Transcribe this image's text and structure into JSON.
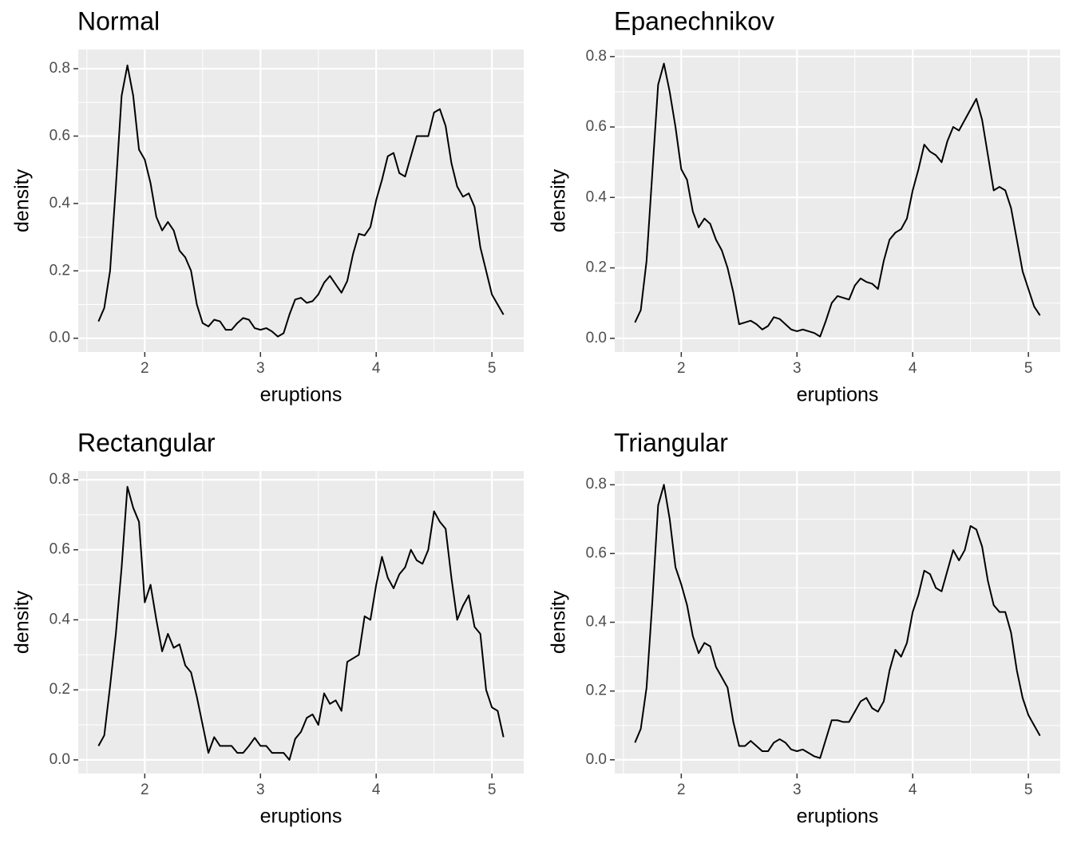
{
  "chart_data": [
    {
      "type": "line",
      "title": "Normal",
      "x_label": "eruptions",
      "y_label": "density",
      "color": "#000000",
      "grid": true,
      "xlim": [
        1.425,
        5.275
      ],
      "ylim": [
        -0.041,
        0.857
      ],
      "xticks": [
        2,
        3,
        4,
        5
      ],
      "yticks": [
        {
          "value": 0,
          "label": "0.0"
        },
        0.2,
        0.4,
        0.6,
        0.8
      ],
      "xminor": [
        1.5,
        2.5,
        3.5,
        4.5
      ],
      "yminor": [
        0.1,
        0.3,
        0.5,
        0.7
      ],
      "x": [
        1.6,
        1.65,
        1.7,
        1.75,
        1.8,
        1.85,
        1.9,
        1.95,
        2.0,
        2.05,
        2.1,
        2.15,
        2.2,
        2.25,
        2.3,
        2.35,
        2.4,
        2.45,
        2.5,
        2.55,
        2.6,
        2.65,
        2.7,
        2.75,
        2.8,
        2.85,
        2.9,
        2.95,
        3.0,
        3.05,
        3.1,
        3.15,
        3.2,
        3.25,
        3.3,
        3.35,
        3.4,
        3.45,
        3.5,
        3.55,
        3.6,
        3.65,
        3.7,
        3.75,
        3.8,
        3.85,
        3.9,
        3.95,
        4.0,
        4.05,
        4.1,
        4.15,
        4.2,
        4.25,
        4.3,
        4.35,
        4.4,
        4.45,
        4.5,
        4.55,
        4.6,
        4.65,
        4.7,
        4.75,
        4.8,
        4.85,
        4.9,
        4.95,
        5.0,
        5.05,
        5.1
      ],
      "values": [
        0.05,
        0.09,
        0.2,
        0.45,
        0.72,
        0.81,
        0.72,
        0.56,
        0.53,
        0.46,
        0.36,
        0.32,
        0.345,
        0.32,
        0.26,
        0.24,
        0.2,
        0.1,
        0.045,
        0.035,
        0.055,
        0.05,
        0.025,
        0.025,
        0.045,
        0.06,
        0.055,
        0.03,
        0.025,
        0.03,
        0.02,
        0.005,
        0.015,
        0.07,
        0.115,
        0.12,
        0.105,
        0.11,
        0.13,
        0.165,
        0.185,
        0.16,
        0.135,
        0.17,
        0.25,
        0.31,
        0.305,
        0.33,
        0.41,
        0.47,
        0.54,
        0.55,
        0.49,
        0.48,
        0.54,
        0.6,
        0.6,
        0.6,
        0.67,
        0.68,
        0.63,
        0.52,
        0.45,
        0.42,
        0.43,
        0.39,
        0.27,
        0.2,
        0.13,
        0.1,
        0.07
      ]
    },
    {
      "type": "line",
      "title": "Epanechnikov",
      "x_label": "eruptions",
      "y_label": "density",
      "color": "#000000",
      "grid": true,
      "xlim": [
        1.425,
        5.275
      ],
      "ylim": [
        -0.039,
        0.82
      ],
      "xticks": [
        2,
        3,
        4,
        5
      ],
      "yticks": [
        {
          "value": 0,
          "label": "0.0"
        },
        0.2,
        0.4,
        0.6,
        0.8
      ],
      "xminor": [
        1.5,
        2.5,
        3.5,
        4.5
      ],
      "yminor": [
        0.1,
        0.3,
        0.5,
        0.7
      ],
      "x": [
        1.6,
        1.65,
        1.7,
        1.75,
        1.8,
        1.85,
        1.9,
        1.95,
        2.0,
        2.05,
        2.1,
        2.15,
        2.2,
        2.25,
        2.3,
        2.35,
        2.4,
        2.45,
        2.5,
        2.55,
        2.6,
        2.65,
        2.7,
        2.75,
        2.8,
        2.85,
        2.9,
        2.95,
        3.0,
        3.05,
        3.1,
        3.15,
        3.2,
        3.25,
        3.3,
        3.35,
        3.4,
        3.45,
        3.5,
        3.55,
        3.6,
        3.65,
        3.7,
        3.75,
        3.8,
        3.85,
        3.9,
        3.95,
        4.0,
        4.05,
        4.1,
        4.15,
        4.2,
        4.25,
        4.3,
        4.35,
        4.4,
        4.45,
        4.5,
        4.55,
        4.6,
        4.65,
        4.7,
        4.75,
        4.8,
        4.85,
        4.9,
        4.95,
        5.0,
        5.05,
        5.1
      ],
      "values": [
        0.045,
        0.08,
        0.22,
        0.47,
        0.72,
        0.78,
        0.7,
        0.6,
        0.48,
        0.45,
        0.36,
        0.315,
        0.34,
        0.325,
        0.28,
        0.25,
        0.2,
        0.13,
        0.04,
        0.045,
        0.05,
        0.04,
        0.025,
        0.035,
        0.06,
        0.055,
        0.04,
        0.025,
        0.02,
        0.025,
        0.02,
        0.015,
        0.005,
        0.05,
        0.1,
        0.12,
        0.115,
        0.11,
        0.15,
        0.17,
        0.16,
        0.155,
        0.14,
        0.22,
        0.28,
        0.3,
        0.31,
        0.34,
        0.42,
        0.48,
        0.55,
        0.53,
        0.52,
        0.5,
        0.56,
        0.6,
        0.59,
        0.62,
        0.65,
        0.68,
        0.62,
        0.52,
        0.42,
        0.43,
        0.42,
        0.37,
        0.28,
        0.19,
        0.14,
        0.09,
        0.065
      ]
    },
    {
      "type": "line",
      "title": "Rectangular",
      "x_label": "eruptions",
      "y_label": "density",
      "color": "#000000",
      "grid": true,
      "xlim": [
        1.425,
        5.275
      ],
      "ylim": [
        -0.039,
        0.825
      ],
      "xticks": [
        2,
        3,
        4,
        5
      ],
      "yticks": [
        {
          "value": 0,
          "label": "0.0"
        },
        0.2,
        0.4,
        0.6,
        0.8
      ],
      "xminor": [
        1.5,
        2.5,
        3.5,
        4.5
      ],
      "yminor": [
        0.1,
        0.3,
        0.5,
        0.7
      ],
      "x": [
        1.6,
        1.65,
        1.7,
        1.75,
        1.8,
        1.85,
        1.9,
        1.95,
        2.0,
        2.05,
        2.1,
        2.15,
        2.2,
        2.25,
        2.3,
        2.35,
        2.4,
        2.45,
        2.5,
        2.55,
        2.6,
        2.65,
        2.7,
        2.75,
        2.8,
        2.85,
        2.9,
        2.95,
        3.0,
        3.05,
        3.1,
        3.15,
        3.2,
        3.25,
        3.3,
        3.35,
        3.4,
        3.45,
        3.5,
        3.55,
        3.6,
        3.65,
        3.7,
        3.75,
        3.8,
        3.85,
        3.9,
        3.95,
        4.0,
        4.05,
        4.1,
        4.15,
        4.2,
        4.25,
        4.3,
        4.35,
        4.4,
        4.45,
        4.5,
        4.55,
        4.6,
        4.65,
        4.7,
        4.75,
        4.8,
        4.85,
        4.9,
        4.95,
        5.0,
        5.05,
        5.1
      ],
      "values": [
        0.04,
        0.07,
        0.21,
        0.36,
        0.55,
        0.78,
        0.72,
        0.68,
        0.45,
        0.5,
        0.4,
        0.31,
        0.36,
        0.32,
        0.33,
        0.27,
        0.25,
        0.18,
        0.1,
        0.02,
        0.065,
        0.04,
        0.04,
        0.04,
        0.02,
        0.02,
        0.04,
        0.063,
        0.04,
        0.04,
        0.02,
        0.02,
        0.02,
        0.0,
        0.06,
        0.08,
        0.12,
        0.13,
        0.1,
        0.19,
        0.16,
        0.17,
        0.14,
        0.28,
        0.29,
        0.3,
        0.41,
        0.4,
        0.5,
        0.58,
        0.52,
        0.49,
        0.53,
        0.55,
        0.6,
        0.57,
        0.56,
        0.6,
        0.71,
        0.68,
        0.66,
        0.52,
        0.4,
        0.44,
        0.47,
        0.38,
        0.36,
        0.2,
        0.15,
        0.14,
        0.065
      ]
    },
    {
      "type": "line",
      "title": "Triangular",
      "x_label": "eruptions",
      "y_label": "density",
      "color": "#000000",
      "grid": true,
      "xlim": [
        1.425,
        5.275
      ],
      "ylim": [
        -0.04,
        0.84
      ],
      "xticks": [
        2,
        3,
        4,
        5
      ],
      "yticks": [
        {
          "value": 0,
          "label": "0.0"
        },
        0.2,
        0.4,
        0.6,
        0.8
      ],
      "xminor": [
        1.5,
        2.5,
        3.5,
        4.5
      ],
      "yminor": [
        0.1,
        0.3,
        0.5,
        0.7
      ],
      "x": [
        1.6,
        1.65,
        1.7,
        1.75,
        1.8,
        1.85,
        1.9,
        1.95,
        2.0,
        2.05,
        2.1,
        2.15,
        2.2,
        2.25,
        2.3,
        2.35,
        2.4,
        2.45,
        2.5,
        2.55,
        2.6,
        2.65,
        2.7,
        2.75,
        2.8,
        2.85,
        2.9,
        2.95,
        3.0,
        3.05,
        3.1,
        3.15,
        3.2,
        3.25,
        3.3,
        3.35,
        3.4,
        3.45,
        3.5,
        3.55,
        3.6,
        3.65,
        3.7,
        3.75,
        3.8,
        3.85,
        3.9,
        3.95,
        4.0,
        4.05,
        4.1,
        4.15,
        4.2,
        4.25,
        4.3,
        4.35,
        4.4,
        4.45,
        4.5,
        4.55,
        4.6,
        4.65,
        4.7,
        4.75,
        4.8,
        4.85,
        4.9,
        4.95,
        5.0,
        5.05,
        5.1
      ],
      "values": [
        0.05,
        0.09,
        0.21,
        0.46,
        0.74,
        0.8,
        0.7,
        0.56,
        0.51,
        0.45,
        0.36,
        0.31,
        0.34,
        0.33,
        0.27,
        0.24,
        0.21,
        0.11,
        0.04,
        0.04,
        0.055,
        0.04,
        0.025,
        0.025,
        0.05,
        0.06,
        0.05,
        0.03,
        0.025,
        0.03,
        0.02,
        0.01,
        0.005,
        0.06,
        0.115,
        0.115,
        0.11,
        0.11,
        0.14,
        0.17,
        0.18,
        0.15,
        0.14,
        0.17,
        0.26,
        0.32,
        0.3,
        0.34,
        0.43,
        0.48,
        0.55,
        0.54,
        0.5,
        0.49,
        0.55,
        0.61,
        0.58,
        0.61,
        0.68,
        0.67,
        0.62,
        0.52,
        0.45,
        0.43,
        0.43,
        0.37,
        0.26,
        0.18,
        0.13,
        0.1,
        0.07
      ]
    }
  ]
}
